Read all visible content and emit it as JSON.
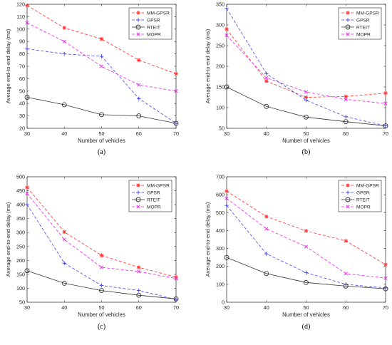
{
  "chart_data": [
    {
      "type": "line",
      "panel_label": "(a)",
      "title": "",
      "xlabel": "Number of vehicles",
      "ylabel": "Average end-to-end delay (ms)",
      "x": [
        30,
        40,
        50,
        60,
        70
      ],
      "xlim": [
        30,
        70
      ],
      "ylim": [
        20,
        120
      ],
      "xticks": [
        30,
        40,
        50,
        60,
        70
      ],
      "yticks": [
        20,
        30,
        40,
        50,
        60,
        70,
        80,
        90,
        100,
        110,
        120
      ],
      "legend_position": "top-right",
      "grid": false,
      "series": [
        {
          "name": "MM-GPSR",
          "values": [
            119,
            101,
            92,
            75,
            64
          ],
          "color": "#ff3333",
          "marker": "star",
          "dash": "dashed"
        },
        {
          "name": "GPSR",
          "values": [
            84,
            80,
            78,
            44,
            24
          ],
          "color": "#4444ee",
          "marker": "plus",
          "dash": "dashed"
        },
        {
          "name": "RTEIT",
          "values": [
            45,
            39,
            31,
            30,
            24
          ],
          "color": "#333333",
          "marker": "circle",
          "dash": "solid"
        },
        {
          "name": "MOPR",
          "values": [
            105,
            90,
            70,
            55,
            50
          ],
          "color": "#ee22ee",
          "marker": "x",
          "dash": "dashed"
        }
      ]
    },
    {
      "type": "line",
      "panel_label": "(b)",
      "title": "",
      "xlabel": "Number of vehicles",
      "ylabel": "Average end-to-end delay (ms)",
      "x": [
        30,
        40,
        50,
        60,
        70
      ],
      "xlim": [
        30,
        70
      ],
      "ylim": [
        50,
        350
      ],
      "xticks": [
        30,
        40,
        50,
        60,
        70
      ],
      "yticks": [
        50,
        100,
        150,
        200,
        250,
        300,
        350
      ],
      "legend_position": "top-right",
      "grid": false,
      "series": [
        {
          "name": "MM-GPSR",
          "values": [
            290,
            164,
            125,
            127,
            135
          ],
          "color": "#ff3333",
          "marker": "star",
          "dash": "dashed"
        },
        {
          "name": "GPSR",
          "values": [
            340,
            182,
            118,
            78,
            56
          ],
          "color": "#4444ee",
          "marker": "plus",
          "dash": "dashed"
        },
        {
          "name": "RTEIT",
          "values": [
            150,
            103,
            77,
            66,
            56
          ],
          "color": "#333333",
          "marker": "circle",
          "dash": "solid"
        },
        {
          "name": "MOPR",
          "values": [
            275,
            172,
            138,
            120,
            110
          ],
          "color": "#ee22ee",
          "marker": "x",
          "dash": "dashed"
        }
      ]
    },
    {
      "type": "line",
      "panel_label": "(c)",
      "title": "",
      "xlabel": "Number of vehicles",
      "ylabel": "Average end-to-end delay (ms)",
      "x": [
        30,
        40,
        50,
        60,
        70
      ],
      "xlim": [
        30,
        70
      ],
      "ylim": [
        50,
        500
      ],
      "xticks": [
        30,
        40,
        50,
        60,
        70
      ],
      "yticks": [
        50,
        100,
        150,
        200,
        250,
        300,
        350,
        400,
        450,
        500
      ],
      "legend_position": "top-right",
      "grid": false,
      "series": [
        {
          "name": "MM-GPSR",
          "values": [
            462,
            302,
            218,
            175,
            140
          ],
          "color": "#ff3333",
          "marker": "star",
          "dash": "dashed"
        },
        {
          "name": "GPSR",
          "values": [
            400,
            190,
            110,
            92,
            60
          ],
          "color": "#4444ee",
          "marker": "plus",
          "dash": "dashed"
        },
        {
          "name": "RTEIT",
          "values": [
            163,
            118,
            92,
            75,
            62
          ],
          "color": "#333333",
          "marker": "circle",
          "dash": "solid"
        },
        {
          "name": "MOPR",
          "values": [
            440,
            275,
            175,
            160,
            135
          ],
          "color": "#ee22ee",
          "marker": "x",
          "dash": "dashed"
        }
      ]
    },
    {
      "type": "line",
      "panel_label": "(d)",
      "title": "",
      "xlabel": "Number of vehicles",
      "ylabel": "Average end-to-end delay (ms)",
      "x": [
        30,
        40,
        50,
        60,
        70
      ],
      "xlim": [
        30,
        70
      ],
      "ylim": [
        0,
        700
      ],
      "xticks": [
        30,
        40,
        50,
        60,
        70
      ],
      "yticks": [
        0,
        100,
        200,
        300,
        400,
        500,
        600,
        700
      ],
      "legend_position": "top-right",
      "grid": false,
      "series": [
        {
          "name": "MM-GPSR",
          "values": [
            620,
            478,
            398,
            342,
            210
          ],
          "color": "#ff3333",
          "marker": "star",
          "dash": "dashed"
        },
        {
          "name": "GPSR",
          "values": [
            540,
            270,
            165,
            100,
            80
          ],
          "color": "#4444ee",
          "marker": "plus",
          "dash": "dashed"
        },
        {
          "name": "RTEIT",
          "values": [
            250,
            160,
            110,
            90,
            75
          ],
          "color": "#333333",
          "marker": "circle",
          "dash": "solid"
        },
        {
          "name": "MOPR",
          "values": [
            580,
            410,
            310,
            160,
            135
          ],
          "color": "#ee22ee",
          "marker": "x",
          "dash": "dashed"
        }
      ]
    }
  ]
}
